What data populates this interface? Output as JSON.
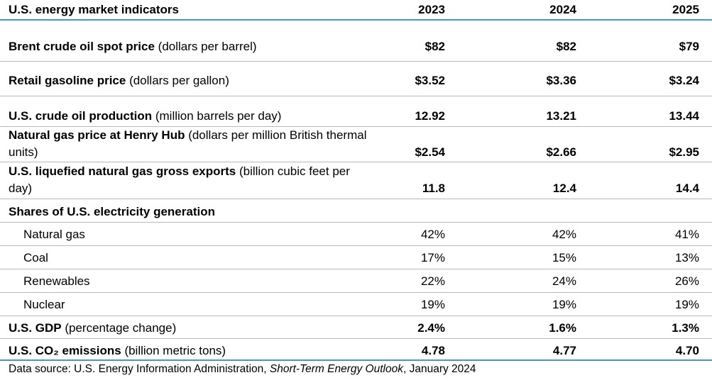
{
  "header": {
    "title": "U.S. energy market indicators",
    "years": [
      "2023",
      "2024",
      "2025"
    ]
  },
  "rows": [
    {
      "label_bold": "Brent crude oil spot price",
      "label_rest": " (dollars per barrel)",
      "values": [
        "$82",
        "$82",
        "$79"
      ]
    },
    {
      "label_bold": "Retail gasoline price",
      "label_rest": " (dollars per gallon)",
      "values": [
        "$3.52",
        "$3.36",
        "$3.24"
      ]
    },
    {
      "label_bold": "U.S. crude oil production",
      "label_rest": " (million barrels per day)",
      "values": [
        "12.92",
        "13.21",
        "13.44"
      ]
    },
    {
      "label_bold": "Natural gas price at Henry Hub",
      "label_rest": " (dollars per million British thermal units)",
      "values": [
        "$2.54",
        "$2.66",
        "$2.95"
      ]
    },
    {
      "label_bold": "U.S. liquefied natural gas gross exports",
      "label_rest": " (billion cubic feet per day)",
      "values": [
        "11.8",
        "12.4",
        "14.4"
      ]
    },
    {
      "label_bold": "Shares of U.S. electricity generation",
      "label_rest": "",
      "values": []
    },
    {
      "label": "Natural gas",
      "values": [
        "42%",
        "42%",
        "41%"
      ]
    },
    {
      "label": "Coal",
      "values": [
        "17%",
        "15%",
        "13%"
      ]
    },
    {
      "label": "Renewables",
      "values": [
        "22%",
        "24%",
        "26%"
      ]
    },
    {
      "label": "Nuclear",
      "values": [
        "19%",
        "19%",
        "19%"
      ]
    },
    {
      "label_bold": "U.S. GDP",
      "label_rest": " (percentage change)",
      "values": [
        "2.4%",
        "1.6%",
        "1.3%"
      ]
    },
    {
      "label_bold": "U.S. CO₂ emissions",
      "label_rest": " (billion metric tons)",
      "values": [
        "4.78",
        "4.77",
        "4.70"
      ]
    }
  ],
  "source": {
    "prefix": "Data source: U.S. Energy Information Administration, ",
    "publication": "Short-Term Energy Outlook",
    "suffix": ", January 2024"
  }
}
